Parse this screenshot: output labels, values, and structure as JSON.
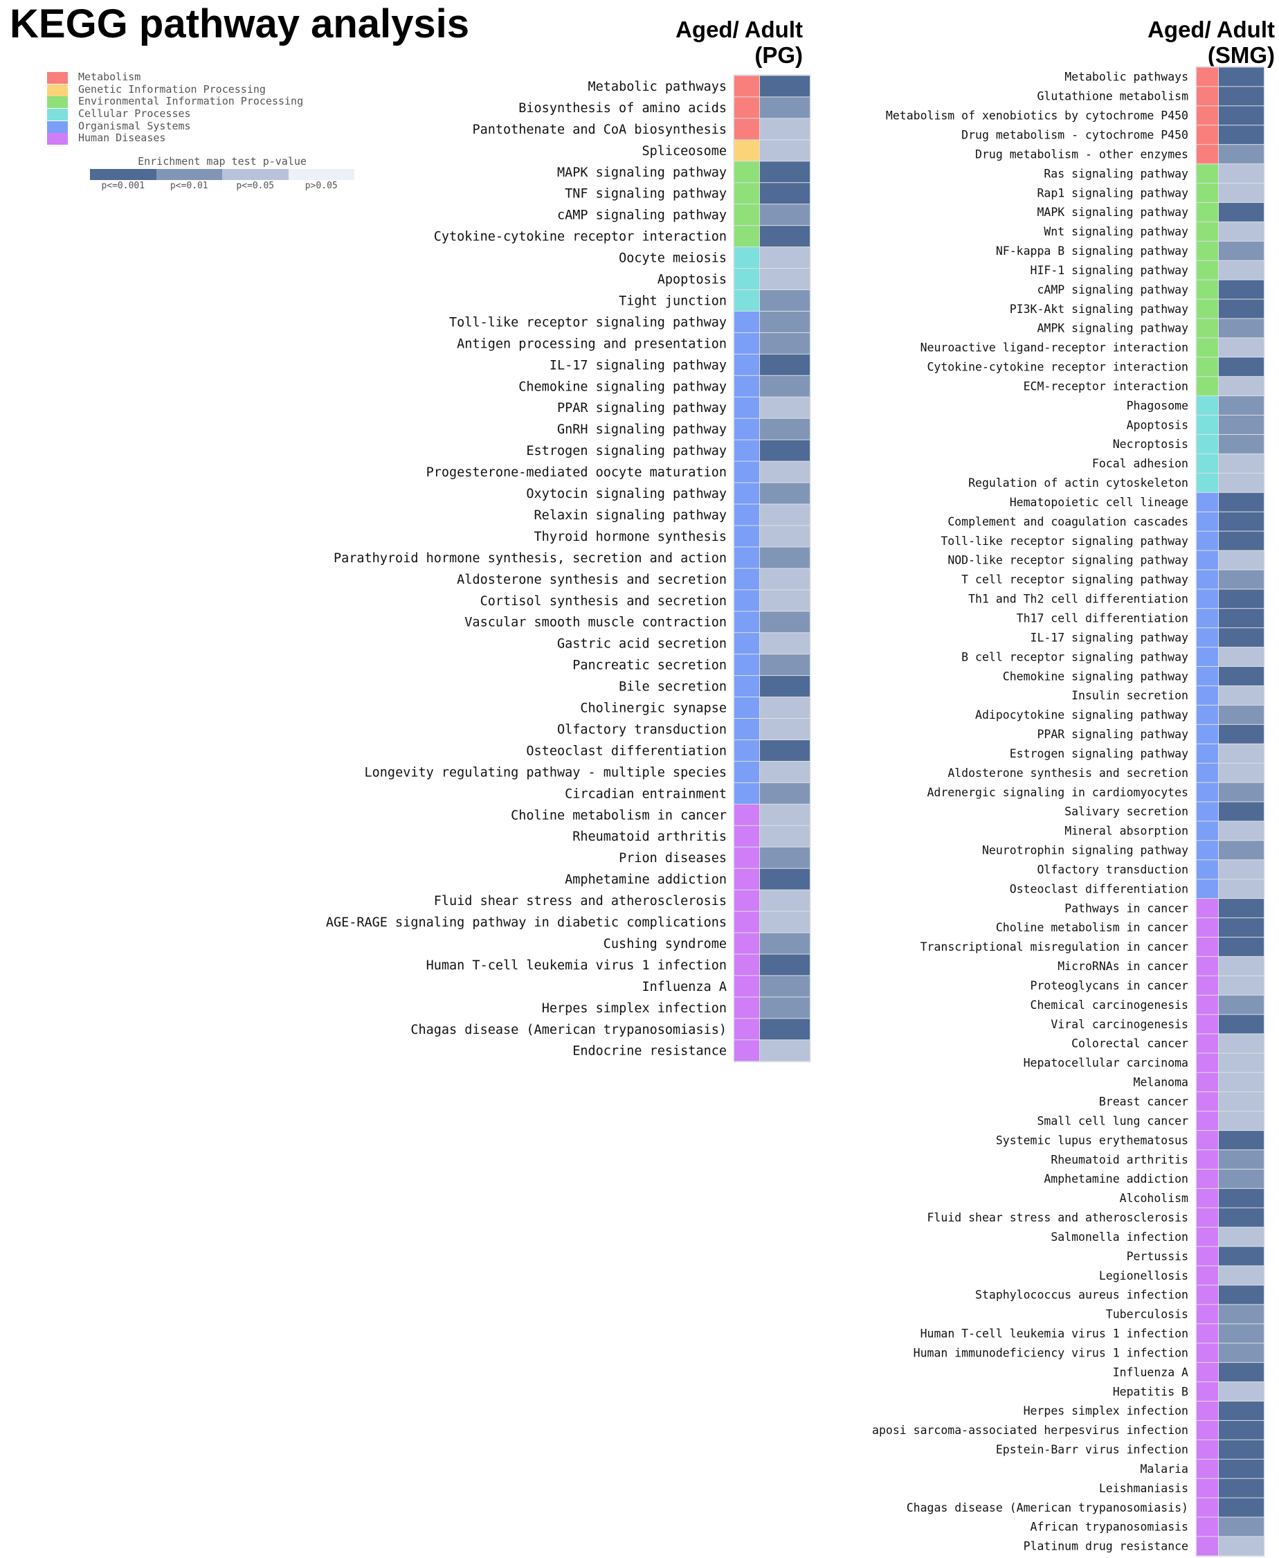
{
  "title": "KEGG pathway analysis",
  "colors": {
    "Metabolism": "#f97f7c",
    "Genetic Information Processing": "#fbd47a",
    "Environmental Information Processing": "#90e07a",
    "Cellular Processes": "#7ee0dd",
    "Organismal Systems": "#7b9ef7",
    "Human Diseases": "#cf7ef7",
    "p<=0.001": "#4f6a94",
    "p<=0.01": "#8196b6",
    "p<=0.05": "#b8c3d9",
    "p>0.05": "#ecf0f8"
  },
  "legend": {
    "categories": [
      "Metabolism",
      "Genetic Information Processing",
      "Environmental Information Processing",
      "Cellular Processes",
      "Organismal Systems",
      "Human Diseases"
    ],
    "pvalue_title": "Enrichment map test p-value",
    "pvalue_levels": [
      "p<=0.001",
      "p<=0.01",
      "p<=0.05",
      "p>0.05"
    ]
  },
  "chart_data": [
    {
      "type": "heatmap",
      "title": "Aged/ Adult (PG)",
      "title_lines": [
        "Aged/ Adult",
        "(PG)"
      ],
      "rows": [
        {
          "name": "Metabolic pathways",
          "category": "Metabolism",
          "p": "p<=0.001"
        },
        {
          "name": "Biosynthesis of amino acids",
          "category": "Metabolism",
          "p": "p<=0.01"
        },
        {
          "name": "Pantothenate and CoA biosynthesis",
          "category": "Metabolism",
          "p": "p<=0.05"
        },
        {
          "name": "Spliceosome",
          "category": "Genetic Information Processing",
          "p": "p<=0.05"
        },
        {
          "name": "MAPK signaling pathway",
          "category": "Environmental Information Processing",
          "p": "p<=0.001"
        },
        {
          "name": "TNF signaling pathway",
          "category": "Environmental Information Processing",
          "p": "p<=0.001"
        },
        {
          "name": "cAMP signaling pathway",
          "category": "Environmental Information Processing",
          "p": "p<=0.01"
        },
        {
          "name": "Cytokine-cytokine receptor interaction",
          "category": "Environmental Information Processing",
          "p": "p<=0.001"
        },
        {
          "name": "Oocyte meiosis",
          "category": "Cellular Processes",
          "p": "p<=0.05"
        },
        {
          "name": "Apoptosis",
          "category": "Cellular Processes",
          "p": "p<=0.05"
        },
        {
          "name": "Tight junction",
          "category": "Cellular Processes",
          "p": "p<=0.01"
        },
        {
          "name": "Toll-like receptor signaling pathway",
          "category": "Organismal Systems",
          "p": "p<=0.01"
        },
        {
          "name": "Antigen processing and presentation",
          "category": "Organismal Systems",
          "p": "p<=0.01"
        },
        {
          "name": "IL-17 signaling pathway",
          "category": "Organismal Systems",
          "p": "p<=0.001"
        },
        {
          "name": "Chemokine signaling pathway",
          "category": "Organismal Systems",
          "p": "p<=0.01"
        },
        {
          "name": "PPAR signaling pathway",
          "category": "Organismal Systems",
          "p": "p<=0.05"
        },
        {
          "name": "GnRH signaling pathway",
          "category": "Organismal Systems",
          "p": "p<=0.01"
        },
        {
          "name": "Estrogen signaling pathway",
          "category": "Organismal Systems",
          "p": "p<=0.001"
        },
        {
          "name": "Progesterone-mediated oocyte maturation",
          "category": "Organismal Systems",
          "p": "p<=0.05"
        },
        {
          "name": "Oxytocin signaling pathway",
          "category": "Organismal Systems",
          "p": "p<=0.01"
        },
        {
          "name": "Relaxin signaling pathway",
          "category": "Organismal Systems",
          "p": "p<=0.05"
        },
        {
          "name": "Thyroid hormone synthesis",
          "category": "Organismal Systems",
          "p": "p<=0.05"
        },
        {
          "name": "Parathyroid hormone synthesis, secretion and action",
          "category": "Organismal Systems",
          "p": "p<=0.01"
        },
        {
          "name": "Aldosterone synthesis and secretion",
          "category": "Organismal Systems",
          "p": "p<=0.05"
        },
        {
          "name": "Cortisol synthesis and secretion",
          "category": "Organismal Systems",
          "p": "p<=0.05"
        },
        {
          "name": "Vascular smooth muscle contraction",
          "category": "Organismal Systems",
          "p": "p<=0.01"
        },
        {
          "name": "Gastric acid secretion",
          "category": "Organismal Systems",
          "p": "p<=0.05"
        },
        {
          "name": "Pancreatic secretion",
          "category": "Organismal Systems",
          "p": "p<=0.01"
        },
        {
          "name": "Bile secretion",
          "category": "Organismal Systems",
          "p": "p<=0.001"
        },
        {
          "name": "Cholinergic synapse",
          "category": "Organismal Systems",
          "p": "p<=0.05"
        },
        {
          "name": "Olfactory transduction",
          "category": "Organismal Systems",
          "p": "p<=0.05"
        },
        {
          "name": "Osteoclast differentiation",
          "category": "Organismal Systems",
          "p": "p<=0.001"
        },
        {
          "name": "Longevity regulating pathway - multiple species",
          "category": "Organismal Systems",
          "p": "p<=0.05"
        },
        {
          "name": "Circadian entrainment",
          "category": "Organismal Systems",
          "p": "p<=0.01"
        },
        {
          "name": "Choline metabolism in cancer",
          "category": "Human Diseases",
          "p": "p<=0.05"
        },
        {
          "name": "Rheumatoid arthritis",
          "category": "Human Diseases",
          "p": "p<=0.05"
        },
        {
          "name": "Prion diseases",
          "category": "Human Diseases",
          "p": "p<=0.01"
        },
        {
          "name": "Amphetamine addiction",
          "category": "Human Diseases",
          "p": "p<=0.001"
        },
        {
          "name": "Fluid shear stress and atherosclerosis",
          "category": "Human Diseases",
          "p": "p<=0.05"
        },
        {
          "name": "AGE-RAGE signaling pathway in diabetic complications",
          "category": "Human Diseases",
          "p": "p<=0.05"
        },
        {
          "name": "Cushing syndrome",
          "category": "Human Diseases",
          "p": "p<=0.01"
        },
        {
          "name": "Human T-cell leukemia virus 1 infection",
          "category": "Human Diseases",
          "p": "p<=0.001"
        },
        {
          "name": "Influenza A",
          "category": "Human Diseases",
          "p": "p<=0.01"
        },
        {
          "name": "Herpes simplex infection",
          "category": "Human Diseases",
          "p": "p<=0.01"
        },
        {
          "name": "Chagas disease (American trypanosomiasis)",
          "category": "Human Diseases",
          "p": "p<=0.001"
        },
        {
          "name": "Endocrine resistance",
          "category": "Human Diseases",
          "p": "p<=0.05"
        }
      ]
    },
    {
      "type": "heatmap",
      "title": "Aged/ Adult (SMG)",
      "title_lines": [
        "Aged/ Adult",
        "(SMG)"
      ],
      "rows": [
        {
          "name": "Metabolic pathways",
          "category": "Metabolism",
          "p": "p<=0.001"
        },
        {
          "name": "Glutathione metabolism",
          "category": "Metabolism",
          "p": "p<=0.001"
        },
        {
          "name": "Metabolism of xenobiotics by cytochrome P450",
          "category": "Metabolism",
          "p": "p<=0.001"
        },
        {
          "name": "Drug metabolism - cytochrome P450",
          "category": "Metabolism",
          "p": "p<=0.001"
        },
        {
          "name": "Drug metabolism - other enzymes",
          "category": "Metabolism",
          "p": "p<=0.01"
        },
        {
          "name": "Ras signaling pathway",
          "category": "Environmental Information Processing",
          "p": "p<=0.05"
        },
        {
          "name": "Rap1 signaling pathway",
          "category": "Environmental Information Processing",
          "p": "p<=0.05"
        },
        {
          "name": "MAPK signaling pathway",
          "category": "Environmental Information Processing",
          "p": "p<=0.001"
        },
        {
          "name": "Wnt signaling pathway",
          "category": "Environmental Information Processing",
          "p": "p<=0.05"
        },
        {
          "name": "NF-kappa B signaling pathway",
          "category": "Environmental Information Processing",
          "p": "p<=0.01"
        },
        {
          "name": "HIF-1 signaling pathway",
          "category": "Environmental Information Processing",
          "p": "p<=0.05"
        },
        {
          "name": "cAMP signaling pathway",
          "category": "Environmental Information Processing",
          "p": "p<=0.001"
        },
        {
          "name": "PI3K-Akt signaling pathway",
          "category": "Environmental Information Processing",
          "p": "p<=0.001"
        },
        {
          "name": "AMPK signaling pathway",
          "category": "Environmental Information Processing",
          "p": "p<=0.01"
        },
        {
          "name": "Neuroactive ligand-receptor interaction",
          "category": "Environmental Information Processing",
          "p": "p<=0.05"
        },
        {
          "name": "Cytokine-cytokine receptor interaction",
          "category": "Environmental Information Processing",
          "p": "p<=0.001"
        },
        {
          "name": "ECM-receptor interaction",
          "category": "Environmental Information Processing",
          "p": "p<=0.05"
        },
        {
          "name": "Phagosome",
          "category": "Cellular Processes",
          "p": "p<=0.01"
        },
        {
          "name": "Apoptosis",
          "category": "Cellular Processes",
          "p": "p<=0.01"
        },
        {
          "name": "Necroptosis",
          "category": "Cellular Processes",
          "p": "p<=0.01"
        },
        {
          "name": "Focal adhesion",
          "category": "Cellular Processes",
          "p": "p<=0.05"
        },
        {
          "name": "Regulation of actin cytoskeleton",
          "category": "Cellular Processes",
          "p": "p<=0.05"
        },
        {
          "name": "Hematopoietic cell lineage",
          "category": "Organismal Systems",
          "p": "p<=0.001"
        },
        {
          "name": "Complement and coagulation cascades",
          "category": "Organismal Systems",
          "p": "p<=0.001"
        },
        {
          "name": "Toll-like receptor signaling pathway",
          "category": "Organismal Systems",
          "p": "p<=0.001"
        },
        {
          "name": "NOD-like receptor signaling pathway",
          "category": "Organismal Systems",
          "p": "p<=0.05"
        },
        {
          "name": "T cell receptor signaling pathway",
          "category": "Organismal Systems",
          "p": "p<=0.01"
        },
        {
          "name": "Th1 and Th2 cell differentiation",
          "category": "Organismal Systems",
          "p": "p<=0.001"
        },
        {
          "name": "Th17 cell differentiation",
          "category": "Organismal Systems",
          "p": "p<=0.001"
        },
        {
          "name": "IL-17 signaling pathway",
          "category": "Organismal Systems",
          "p": "p<=0.001"
        },
        {
          "name": "B cell receptor signaling pathway",
          "category": "Organismal Systems",
          "p": "p<=0.05"
        },
        {
          "name": "Chemokine signaling pathway",
          "category": "Organismal Systems",
          "p": "p<=0.001"
        },
        {
          "name": "Insulin secretion",
          "category": "Organismal Systems",
          "p": "p<=0.05"
        },
        {
          "name": "Adipocytokine signaling pathway",
          "category": "Organismal Systems",
          "p": "p<=0.01"
        },
        {
          "name": "PPAR signaling pathway",
          "category": "Organismal Systems",
          "p": "p<=0.001"
        },
        {
          "name": "Estrogen signaling pathway",
          "category": "Organismal Systems",
          "p": "p<=0.05"
        },
        {
          "name": "Aldosterone synthesis and secretion",
          "category": "Organismal Systems",
          "p": "p<=0.05"
        },
        {
          "name": "Adrenergic signaling in cardiomyocytes",
          "category": "Organismal Systems",
          "p": "p<=0.01"
        },
        {
          "name": "Salivary secretion",
          "category": "Organismal Systems",
          "p": "p<=0.001"
        },
        {
          "name": "Mineral absorption",
          "category": "Organismal Systems",
          "p": "p<=0.05"
        },
        {
          "name": "Neurotrophin signaling pathway",
          "category": "Organismal Systems",
          "p": "p<=0.01"
        },
        {
          "name": "Olfactory transduction",
          "category": "Organismal Systems",
          "p": "p<=0.05"
        },
        {
          "name": "Osteoclast differentiation",
          "category": "Organismal Systems",
          "p": "p<=0.05"
        },
        {
          "name": "Pathways in cancer",
          "category": "Human Diseases",
          "p": "p<=0.001"
        },
        {
          "name": "Choline metabolism in cancer",
          "category": "Human Diseases",
          "p": "p<=0.001"
        },
        {
          "name": "Transcriptional misregulation in cancer",
          "category": "Human Diseases",
          "p": "p<=0.001"
        },
        {
          "name": "MicroRNAs in cancer",
          "category": "Human Diseases",
          "p": "p<=0.05"
        },
        {
          "name": "Proteoglycans in cancer",
          "category": "Human Diseases",
          "p": "p<=0.05"
        },
        {
          "name": "Chemical carcinogenesis",
          "category": "Human Diseases",
          "p": "p<=0.01"
        },
        {
          "name": "Viral carcinogenesis",
          "category": "Human Diseases",
          "p": "p<=0.001"
        },
        {
          "name": "Colorectal cancer",
          "category": "Human Diseases",
          "p": "p<=0.05"
        },
        {
          "name": "Hepatocellular carcinoma",
          "category": "Human Diseases",
          "p": "p<=0.05"
        },
        {
          "name": "Melanoma",
          "category": "Human Diseases",
          "p": "p<=0.05"
        },
        {
          "name": "Breast cancer",
          "category": "Human Diseases",
          "p": "p<=0.05"
        },
        {
          "name": "Small cell lung cancer",
          "category": "Human Diseases",
          "p": "p<=0.05"
        },
        {
          "name": "Systemic lupus erythematosus",
          "category": "Human Diseases",
          "p": "p<=0.001"
        },
        {
          "name": "Rheumatoid arthritis",
          "category": "Human Diseases",
          "p": "p<=0.01"
        },
        {
          "name": "Amphetamine addiction",
          "category": "Human Diseases",
          "p": "p<=0.01"
        },
        {
          "name": "Alcoholism",
          "category": "Human Diseases",
          "p": "p<=0.001"
        },
        {
          "name": "Fluid shear stress and atherosclerosis",
          "category": "Human Diseases",
          "p": "p<=0.001"
        },
        {
          "name": "Salmonella infection",
          "category": "Human Diseases",
          "p": "p<=0.05"
        },
        {
          "name": "Pertussis",
          "category": "Human Diseases",
          "p": "p<=0.001"
        },
        {
          "name": "Legionellosis",
          "category": "Human Diseases",
          "p": "p<=0.05"
        },
        {
          "name": "Staphylococcus aureus infection",
          "category": "Human Diseases",
          "p": "p<=0.001"
        },
        {
          "name": "Tuberculosis",
          "category": "Human Diseases",
          "p": "p<=0.01"
        },
        {
          "name": "Human T-cell leukemia virus 1 infection",
          "category": "Human Diseases",
          "p": "p<=0.01"
        },
        {
          "name": "Human immunodeficiency virus 1 infection",
          "category": "Human Diseases",
          "p": "p<=0.01"
        },
        {
          "name": "Influenza A",
          "category": "Human Diseases",
          "p": "p<=0.001"
        },
        {
          "name": "Hepatitis B",
          "category": "Human Diseases",
          "p": "p<=0.05"
        },
        {
          "name": "Herpes simplex infection",
          "category": "Human Diseases",
          "p": "p<=0.001"
        },
        {
          "name": "aposi sarcoma-associated herpesvirus infection",
          "category": "Human Diseases",
          "p": "p<=0.001"
        },
        {
          "name": "Epstein-Barr virus infection",
          "category": "Human Diseases",
          "p": "p<=0.001"
        },
        {
          "name": "Malaria",
          "category": "Human Diseases",
          "p": "p<=0.001"
        },
        {
          "name": "Leishmaniasis",
          "category": "Human Diseases",
          "p": "p<=0.001"
        },
        {
          "name": "Chagas disease (American trypanosomiasis)",
          "category": "Human Diseases",
          "p": "p<=0.001"
        },
        {
          "name": "African trypanosomiasis",
          "category": "Human Diseases",
          "p": "p<=0.01"
        },
        {
          "name": "Platinum drug resistance",
          "category": "Human Diseases",
          "p": "p<=0.05"
        }
      ]
    }
  ]
}
